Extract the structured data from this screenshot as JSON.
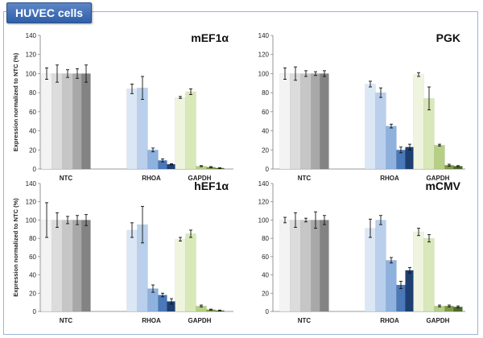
{
  "figure": {
    "banner_label": "HUVEC cells"
  },
  "colors": {
    "NTC": [
      "#f3f3f3",
      "#dcdcdc",
      "#c6c6c6",
      "#a8a8a8",
      "#838383"
    ],
    "RHOA": [
      "#dce7f5",
      "#b9cfeb",
      "#8eb1de",
      "#4a78b8",
      "#1f3f73"
    ],
    "GAPDH": [
      "#eef4de",
      "#d9e8b8",
      "#b6cf85",
      "#7e9a48",
      "#4f6a2b"
    ]
  },
  "chart_data": [
    {
      "type": "bar",
      "title": "mEF1α",
      "ylabel": "Expression normalized to NTC (%)",
      "categories": [
        "NTC",
        "RHOA",
        "GAPDH"
      ],
      "ylim": [
        0,
        140
      ],
      "yticks": [
        0,
        20,
        40,
        60,
        80,
        100,
        120,
        140
      ],
      "values": [
        [
          100,
          100,
          100,
          100,
          100
        ],
        [
          84,
          85,
          20,
          9,
          5
        ],
        [
          75,
          81,
          3,
          2,
          1
        ]
      ],
      "errors": [
        [
          6,
          9,
          4,
          5,
          9
        ],
        [
          5,
          12,
          2,
          1.5,
          0.5
        ],
        [
          1,
          3,
          0.5,
          0.5,
          0.3
        ]
      ]
    },
    {
      "type": "bar",
      "title": "PGK",
      "ylabel": "",
      "categories": [
        "NTC",
        "RHOA",
        "GAPDH"
      ],
      "ylim": [
        0,
        140
      ],
      "yticks": [
        0,
        20,
        40,
        60,
        80,
        100,
        120,
        140
      ],
      "values": [
        [
          100,
          100,
          100,
          100,
          100
        ],
        [
          89,
          80,
          45,
          20,
          23
        ],
        [
          99,
          74,
          25,
          4,
          3
        ]
      ],
      "errors": [
        [
          6,
          7,
          3,
          2,
          3
        ],
        [
          3,
          5,
          2,
          3,
          3
        ],
        [
          2,
          12,
          1,
          1,
          0.5
        ]
      ]
    },
    {
      "type": "bar",
      "title": "hEF1α",
      "ylabel": "Expression normalized to NTC (%)",
      "categories": [
        "NTC",
        "RHOA",
        "GAPDH"
      ],
      "ylim": [
        0,
        140
      ],
      "yticks": [
        0,
        20,
        40,
        60,
        80,
        100,
        120,
        140
      ],
      "values": [
        [
          100,
          100,
          100,
          100,
          100
        ],
        [
          89,
          95,
          25,
          18,
          11
        ],
        [
          79,
          85,
          6,
          2,
          1
        ]
      ],
      "errors": [
        [
          19,
          8,
          4,
          5,
          6
        ],
        [
          8,
          20,
          4,
          2,
          3
        ],
        [
          2,
          4,
          1,
          0.5,
          0.5
        ]
      ]
    },
    {
      "type": "bar",
      "title": "mCMV",
      "ylabel": "",
      "categories": [
        "NTC",
        "RHOA",
        "GAPDH"
      ],
      "ylim": [
        0,
        140
      ],
      "yticks": [
        0,
        20,
        40,
        60,
        80,
        100,
        120,
        140
      ],
      "values": [
        [
          100,
          100,
          100,
          100,
          100
        ],
        [
          91,
          100,
          56,
          29,
          45
        ],
        [
          87,
          80,
          6,
          6,
          5
        ]
      ],
      "errors": [
        [
          3,
          8,
          2,
          9,
          5
        ],
        [
          10,
          5,
          3,
          4,
          3
        ],
        [
          4,
          4,
          1,
          1,
          1
        ]
      ]
    }
  ]
}
